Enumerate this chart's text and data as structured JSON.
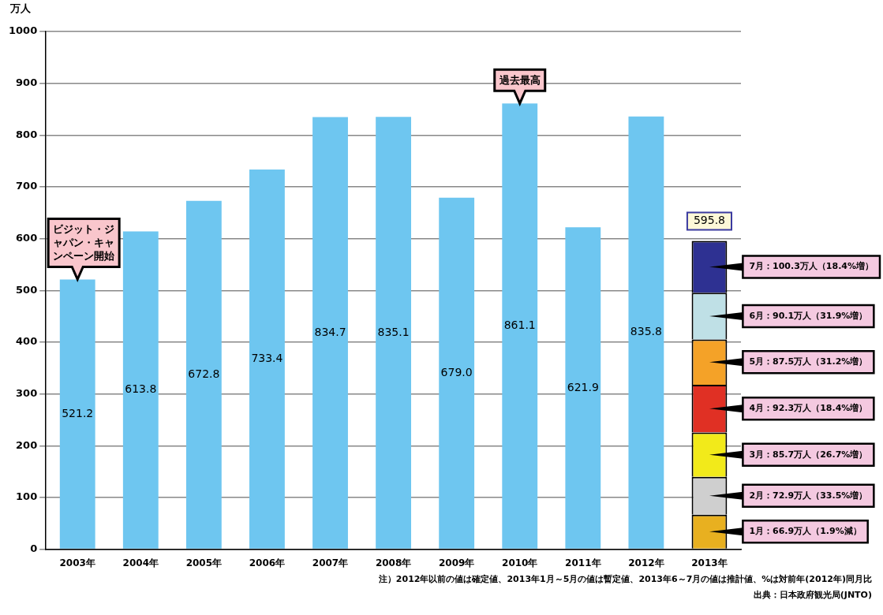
{
  "chart_data": {
    "type": "bar",
    "stacked": true,
    "ylabel": "万人",
    "categories": [
      "2003年",
      "2004年",
      "2005年",
      "2006年",
      "2007年",
      "2008年",
      "2009年",
      "2010年",
      "2011年",
      "2012年",
      "2013年"
    ],
    "series": [
      {
        "color": "#6ec6f0",
        "values": [
          521.2,
          613.8,
          672.8,
          733.4,
          834.7,
          835.1,
          679.0,
          861.1,
          621.9,
          835.8,
          null
        ],
        "value_labels": [
          "521.2",
          "613.8",
          "672.8",
          "733.4",
          "834.7",
          "835.1",
          "679.0",
          "861.1",
          "621.9",
          "835.8",
          null
        ]
      },
      {
        "color": "#e8b020",
        "values": [
          null,
          null,
          null,
          null,
          null,
          null,
          null,
          null,
          null,
          null,
          66.9
        ],
        "value_labels": [
          null,
          null,
          null,
          null,
          null,
          null,
          null,
          null,
          null,
          null,
          "1月：66.9万人（1.9%減）"
        ]
      },
      {
        "color": "#cfcfcf",
        "values": [
          null,
          null,
          null,
          null,
          null,
          null,
          null,
          null,
          null,
          null,
          72.9
        ],
        "value_labels": [
          null,
          null,
          null,
          null,
          null,
          null,
          null,
          null,
          null,
          null,
          "2月：72.9万人（33.5%増）"
        ]
      },
      {
        "color": "#f2ea1a",
        "values": [
          null,
          null,
          null,
          null,
          null,
          null,
          null,
          null,
          null,
          null,
          85.7
        ],
        "value_labels": [
          null,
          null,
          null,
          null,
          null,
          null,
          null,
          null,
          null,
          null,
          "3月：85.7万人（26.7%増）"
        ]
      },
      {
        "color": "#e03024",
        "values": [
          null,
          null,
          null,
          null,
          null,
          null,
          null,
          null,
          null,
          null,
          92.3
        ],
        "value_labels": [
          null,
          null,
          null,
          null,
          null,
          null,
          null,
          null,
          null,
          null,
          "4月：92.3万人（18.4%増）"
        ]
      },
      {
        "color": "#f4a228",
        "values": [
          null,
          null,
          null,
          null,
          null,
          null,
          null,
          null,
          null,
          null,
          87.5
        ],
        "value_labels": [
          null,
          null,
          null,
          null,
          null,
          null,
          null,
          null,
          null,
          null,
          "5月：87.5万人（31.2%増）"
        ]
      },
      {
        "color": "#bfe0e6",
        "values": [
          null,
          null,
          null,
          null,
          null,
          null,
          null,
          null,
          null,
          null,
          90.1
        ],
        "value_labels": [
          null,
          null,
          null,
          null,
          null,
          null,
          null,
          null,
          null,
          null,
          "6月：90.1万人（31.9%増）"
        ]
      },
      {
        "color": "#2e3192",
        "values": [
          null,
          null,
          null,
          null,
          null,
          null,
          null,
          null,
          null,
          null,
          100.3
        ],
        "value_labels": [
          null,
          null,
          null,
          null,
          null,
          null,
          null,
          null,
          null,
          null,
          "7月：100.3万人（18.4%増）"
        ]
      }
    ],
    "totals": [
      null,
      null,
      null,
      null,
      null,
      null,
      null,
      null,
      null,
      null,
      "595.8"
    ],
    "ylim": [
      0,
      1000
    ],
    "yticks": [
      0,
      100,
      200,
      300,
      400,
      500,
      600,
      700,
      800,
      900,
      1000
    ],
    "grid": "y",
    "annotations": [
      {
        "text": "ビジット・ジャパン・キャンペーン開始",
        "x": "2003年",
        "y": 521.2
      },
      {
        "text": "過去最高",
        "x": "2010年",
        "y": 861.1
      },
      "注）2012年以前の値は確定値、2013年1月～5月の値は暫定値、2013年6～7月の値は推計値、%は対前年(2012年)同月比",
      "出典：日本政府観光局(JNTO)"
    ]
  }
}
